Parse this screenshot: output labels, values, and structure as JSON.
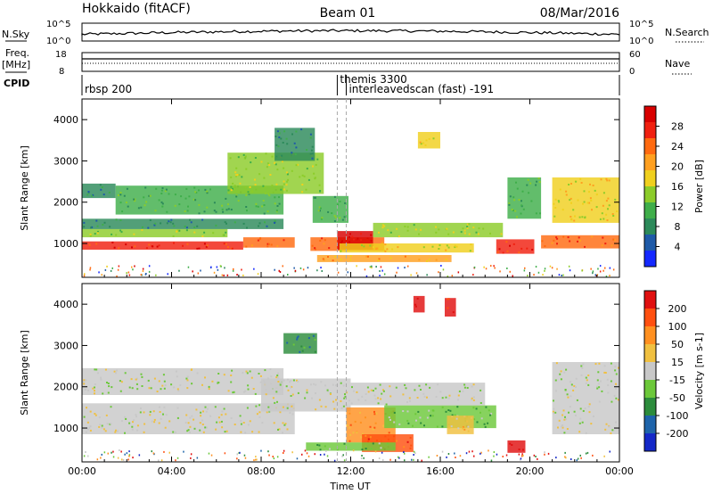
{
  "header": {
    "title": "Hokkaido (fitACF)",
    "beam": "Beam 01",
    "date": "08/Mar/2016"
  },
  "top_panel": {
    "nsky_label": "N.Sky",
    "nsearch_label": "N.Search",
    "nsky_ticks": [
      "10^5",
      "10^0"
    ],
    "nsearch_ticks": [
      "10^5",
      "10^0"
    ],
    "freq_label": "Freq.",
    "freq_unit": "[MHz]",
    "freq_ticks": [
      "18",
      "8"
    ],
    "nave_label": "Nave",
    "nave_ticks": [
      "60",
      "0"
    ],
    "cpid_label": "CPID",
    "cpid_segments": [
      {
        "label": "rbsp 200",
        "start_hour": 0
      },
      {
        "label": "themis 3300",
        "start_hour": 11.4
      },
      {
        "label": "interleavedscan (fast) -191",
        "start_hour": 11.8
      }
    ]
  },
  "chart_data": [
    {
      "type": "heatmap",
      "title": "",
      "xlabel": "Time UT",
      "ylabel": "Slant Range [km]",
      "xlim": [
        0,
        24
      ],
      "ylim": [
        180,
        4500
      ],
      "x_ticks": [
        "00:00",
        "04:00",
        "08:00",
        "12:00",
        "16:00",
        "20:00",
        "00:00"
      ],
      "y_ticks": [
        1000,
        2000,
        3000,
        4000
      ],
      "colorbar": {
        "label": "Power [dB]",
        "ticks": [
          "4",
          "8",
          "12",
          "16",
          "20",
          "24",
          "28"
        ],
        "colors": [
          "#1428ff",
          "#1e5aa8",
          "#2c8a5a",
          "#3fae4a",
          "#8ccc2a",
          "#f0d01e",
          "#ffa020",
          "#ff6a10",
          "#f02010",
          "#d80000"
        ]
      },
      "regions": [
        {
          "t0": 0.0,
          "t1": 7.2,
          "r0": 850,
          "r1": 1050,
          "level": 8
        },
        {
          "t0": 7.2,
          "t1": 9.5,
          "r0": 900,
          "r1": 1150,
          "level": 7
        },
        {
          "t0": 0.0,
          "t1": 6.5,
          "r0": 1150,
          "r1": 1350,
          "level": 4
        },
        {
          "t0": 0.0,
          "t1": 9.0,
          "r0": 1350,
          "r1": 1600,
          "level": 2
        },
        {
          "t0": 0.0,
          "t1": 1.5,
          "r0": 2100,
          "r1": 2450,
          "level": 2
        },
        {
          "t0": 1.5,
          "t1": 9.0,
          "r0": 1700,
          "r1": 2400,
          "level": 3
        },
        {
          "t0": 6.5,
          "t1": 10.8,
          "r0": 2200,
          "r1": 3200,
          "level": 4
        },
        {
          "t0": 8.6,
          "t1": 10.4,
          "r0": 3000,
          "r1": 3800,
          "level": 2
        },
        {
          "t0": 10.3,
          "t1": 11.9,
          "r0": 1500,
          "r1": 2150,
          "level": 3
        },
        {
          "t0": 10.2,
          "t1": 13.5,
          "r0": 820,
          "r1": 1150,
          "level": 7
        },
        {
          "t0": 11.4,
          "t1": 13.0,
          "r0": 850,
          "r1": 1300,
          "level": 9
        },
        {
          "t0": 13.0,
          "t1": 18.8,
          "r0": 1150,
          "r1": 1500,
          "level": 4
        },
        {
          "t0": 11.5,
          "t1": 17.5,
          "r0": 780,
          "r1": 1000,
          "level": 5
        },
        {
          "t0": 10.5,
          "t1": 16.5,
          "r0": 550,
          "r1": 720,
          "level": 6
        },
        {
          "t0": 18.5,
          "t1": 20.2,
          "r0": 750,
          "r1": 1100,
          "level": 8
        },
        {
          "t0": 20.5,
          "t1": 24.0,
          "r0": 880,
          "r1": 1200,
          "level": 7
        },
        {
          "t0": 21.0,
          "t1": 24.0,
          "r0": 1500,
          "r1": 2600,
          "level": 5
        },
        {
          "t0": 15.0,
          "t1": 16.0,
          "r0": 3300,
          "r1": 3700,
          "level": 5
        },
        {
          "t0": 19.0,
          "t1": 20.5,
          "r0": 1600,
          "r1": 2600,
          "level": 3
        }
      ]
    },
    {
      "type": "heatmap",
      "title": "",
      "xlabel": "Time UT",
      "ylabel": "Slant Range [km]",
      "xlim": [
        0,
        24
      ],
      "ylim": [
        180,
        4500
      ],
      "x_ticks": [
        "00:00",
        "04:00",
        "08:00",
        "12:00",
        "16:00",
        "20:00",
        "00:00"
      ],
      "y_ticks": [
        1000,
        2000,
        3000,
        4000
      ],
      "colorbar": {
        "label": "Velocity [m s-1]",
        "ticks": [
          "200",
          "100",
          "50",
          "15",
          "-15",
          "-50",
          "-100",
          "-200"
        ],
        "colors": [
          "#1428c8",
          "#1e64aa",
          "#2c8c3c",
          "#6cc83a",
          "#c8c8c8",
          "#f0c040",
          "#ff9020",
          "#ff5010",
          "#e01010"
        ]
      },
      "regions": [
        {
          "t0": 0.0,
          "t1": 9.5,
          "r0": 850,
          "r1": 1600,
          "level": 4
        },
        {
          "t0": 0.0,
          "t1": 9.0,
          "r0": 1800,
          "r1": 2450,
          "level": 4
        },
        {
          "t0": 8.0,
          "t1": 12.0,
          "r0": 1400,
          "r1": 2200,
          "level": 4
        },
        {
          "t0": 9.0,
          "t1": 10.5,
          "r0": 2800,
          "r1": 3300,
          "level": 2
        },
        {
          "t0": 11.8,
          "t1": 14.0,
          "r0": 650,
          "r1": 1500,
          "level": 6
        },
        {
          "t0": 12.5,
          "t1": 14.8,
          "r0": 420,
          "r1": 850,
          "level": 7
        },
        {
          "t0": 13.5,
          "t1": 18.5,
          "r0": 1000,
          "r1": 1550,
          "level": 3
        },
        {
          "t0": 12.0,
          "t1": 18.0,
          "r0": 1550,
          "r1": 2100,
          "level": 4
        },
        {
          "t0": 10.0,
          "t1": 14.0,
          "r0": 450,
          "r1": 650,
          "level": 3
        },
        {
          "t0": 16.3,
          "t1": 17.5,
          "r0": 850,
          "r1": 1300,
          "level": 5
        },
        {
          "t0": 19.0,
          "t1": 19.8,
          "r0": 400,
          "r1": 700,
          "level": 8
        },
        {
          "t0": 21.0,
          "t1": 24.0,
          "r0": 850,
          "r1": 2600,
          "level": 4
        },
        {
          "t0": 14.8,
          "t1": 15.3,
          "r0": 3800,
          "r1": 4200,
          "level": 8
        },
        {
          "t0": 16.2,
          "t1": 16.7,
          "r0": 3700,
          "r1": 4150,
          "level": 8
        }
      ]
    }
  ]
}
